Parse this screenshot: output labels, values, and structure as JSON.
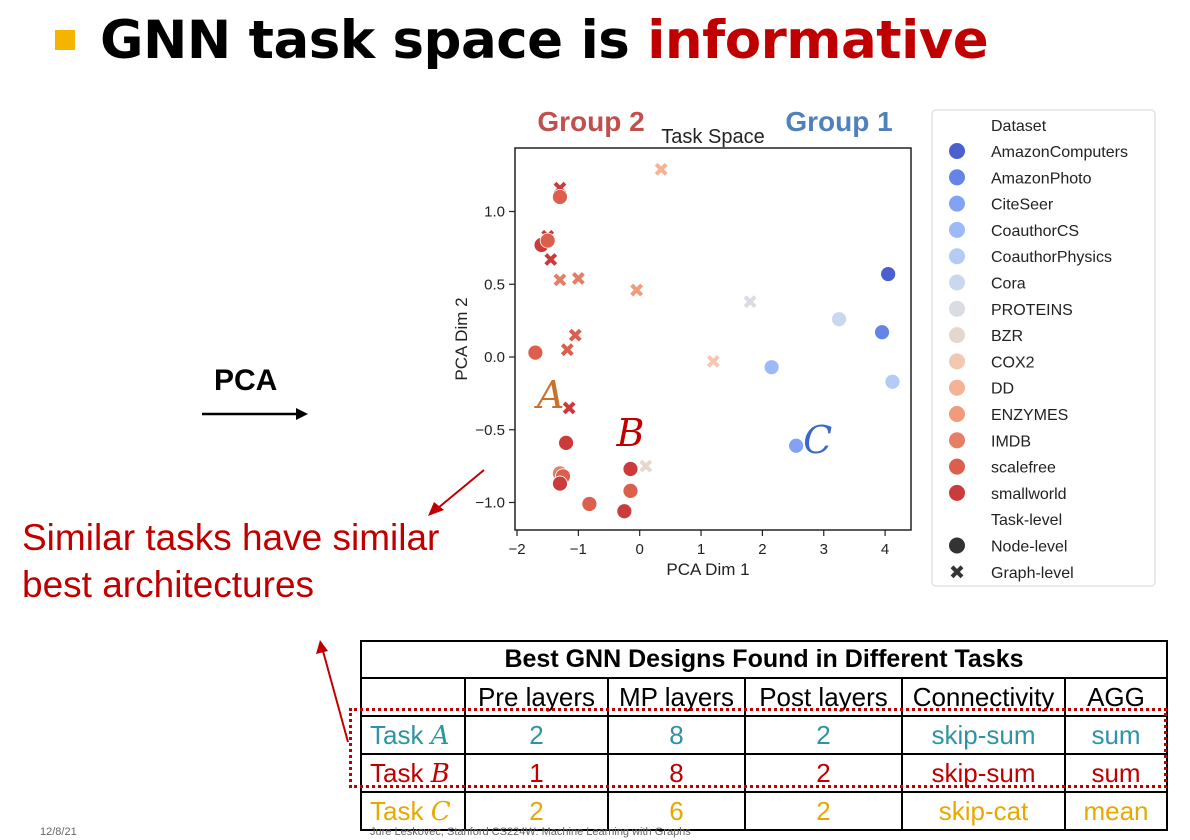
{
  "slide": {
    "title_prefix": "GNN task space is ",
    "title_highlight": "informative",
    "pca_label": "PCA",
    "similar_line1": "Similar tasks have similar",
    "similar_line2": "best architectures",
    "footer_left": "12/8/21",
    "footer_center": "Jure Leskovec, Stanford CS224W: Machine Learning with Graphs"
  },
  "chart_data": {
    "type": "scatter",
    "title": "Task Space",
    "xlabel": "PCA Dim 1",
    "ylabel": "PCA Dim 2",
    "xlim": [
      -2,
      4.45
    ],
    "ylim": [
      -1.2,
      1.45
    ],
    "xticks": [
      -2,
      -1,
      0,
      1,
      2,
      3,
      4
    ],
    "xtick_labels": [
      "−2",
      "−1",
      "0",
      "1",
      "2",
      "3",
      "4"
    ],
    "yticks": [
      -1.0,
      -0.5,
      0.0,
      0.5,
      1.0
    ],
    "ytick_labels": [
      "−1.0",
      "−0.5",
      "0.0",
      "0.5",
      "1.0"
    ],
    "grid": false,
    "legend_placement": "right",
    "group_labels": [
      {
        "text": "Group 2",
        "color": "#c0504d"
      },
      {
        "text": "Group 1",
        "color": "#4f81bd"
      }
    ],
    "annotations": [
      {
        "text": "A",
        "color": "#c8712a",
        "x": -1.45,
        "y": -0.35
      },
      {
        "text": "B",
        "color": "#c00000",
        "x": -0.15,
        "y": -0.61
      },
      {
        "text": "C",
        "color": "#3a6ac8",
        "x": 2.9,
        "y": -0.66
      }
    ],
    "legend": {
      "dataset_title": "Dataset",
      "datasets": [
        {
          "name": "AmazonComputers",
          "color": "#4b5fd0"
        },
        {
          "name": "AmazonPhoto",
          "color": "#6585e6"
        },
        {
          "name": "CiteSeer",
          "color": "#82a3f3"
        },
        {
          "name": "CoauthorCS",
          "color": "#9dbaf8"
        },
        {
          "name": "CoauthorPhysics",
          "color": "#b4cbf6"
        },
        {
          "name": "Cora",
          "color": "#c9d7ef"
        },
        {
          "name": "PROTEINS",
          "color": "#d9dce3"
        },
        {
          "name": "BZR",
          "color": "#e6d7ce"
        },
        {
          "name": "COX2",
          "color": "#f2c8b1"
        },
        {
          "name": "DD",
          "color": "#f5b395"
        },
        {
          "name": "ENZYMES",
          "color": "#f19a7c"
        },
        {
          "name": "IMDB",
          "color": "#e67e66"
        },
        {
          "name": "scalefree",
          "color": "#dc5e4d"
        },
        {
          "name": "smallworld",
          "color": "#cc3b3b"
        }
      ],
      "level_title": "Task-level",
      "levels": [
        {
          "name": "Node-level",
          "marker": "circle"
        },
        {
          "name": "Graph-level",
          "marker": "x"
        }
      ]
    },
    "points": [
      {
        "x": 4.05,
        "y": 0.57,
        "marker": "circle",
        "color": "#4b5fd0"
      },
      {
        "x": 3.95,
        "y": 0.17,
        "marker": "circle",
        "color": "#6585e6"
      },
      {
        "x": 2.55,
        "y": -0.61,
        "marker": "circle",
        "color": "#82a3f3"
      },
      {
        "x": 2.15,
        "y": -0.07,
        "marker": "circle",
        "color": "#9dbaf8"
      },
      {
        "x": 4.12,
        "y": -0.17,
        "marker": "circle",
        "color": "#b4cbf6"
      },
      {
        "x": 3.25,
        "y": 0.26,
        "marker": "circle",
        "color": "#c9d7ef"
      },
      {
        "x": 1.8,
        "y": 0.38,
        "marker": "x",
        "color": "#d9dce3"
      },
      {
        "x": 0.1,
        "y": -0.75,
        "marker": "x",
        "color": "#e6d7ce"
      },
      {
        "x": 1.2,
        "y": -0.03,
        "marker": "x",
        "color": "#f2c8b1"
      },
      {
        "x": 0.35,
        "y": 1.29,
        "marker": "x",
        "color": "#f5b395"
      },
      {
        "x": -0.05,
        "y": 0.46,
        "marker": "x",
        "color": "#f19a7c"
      },
      {
        "x": -1.3,
        "y": 0.53,
        "marker": "x",
        "color": "#e67e66"
      },
      {
        "x": -1.0,
        "y": 0.54,
        "marker": "x",
        "color": "#e67e66"
      },
      {
        "x": -1.3,
        "y": 1.16,
        "marker": "x",
        "color": "#cc3b3b"
      },
      {
        "x": -1.5,
        "y": 0.83,
        "marker": "x",
        "color": "#cc3b3b"
      },
      {
        "x": -1.45,
        "y": 0.67,
        "marker": "x",
        "color": "#cc3b3b"
      },
      {
        "x": -1.05,
        "y": 0.15,
        "marker": "x",
        "color": "#dc5e4d"
      },
      {
        "x": -1.18,
        "y": 0.05,
        "marker": "x",
        "color": "#dc5e4d"
      },
      {
        "x": -1.15,
        "y": -0.35,
        "marker": "x",
        "color": "#cc3b3b"
      },
      {
        "x": -1.3,
        "y": 1.1,
        "marker": "circle",
        "color": "#dc5e4d"
      },
      {
        "x": -1.6,
        "y": 0.77,
        "marker": "circle",
        "color": "#cc3b3b"
      },
      {
        "x": -1.5,
        "y": 0.8,
        "marker": "circle",
        "color": "#dc5e4d"
      },
      {
        "x": -1.7,
        "y": 0.03,
        "marker": "circle",
        "color": "#dc5e4d"
      },
      {
        "x": -1.2,
        "y": -0.59,
        "marker": "circle",
        "color": "#cc3b3b"
      },
      {
        "x": -1.3,
        "y": -0.8,
        "marker": "circle",
        "color": "#e67e66"
      },
      {
        "x": -1.25,
        "y": -0.82,
        "marker": "circle",
        "color": "#dc5e4d"
      },
      {
        "x": -1.3,
        "y": -0.87,
        "marker": "circle",
        "color": "#cc3b3b"
      },
      {
        "x": -0.82,
        "y": -1.01,
        "marker": "circle",
        "color": "#dc5e4d"
      },
      {
        "x": -0.25,
        "y": -1.06,
        "marker": "circle",
        "color": "#cc3b3b"
      },
      {
        "x": -0.15,
        "y": -0.77,
        "marker": "circle",
        "color": "#cc3b3b"
      },
      {
        "x": -0.15,
        "y": -0.92,
        "marker": "circle",
        "color": "#dc5e4d"
      }
    ]
  },
  "table": {
    "caption": "Best GNN Designs Found in Different Tasks",
    "headers": [
      "",
      "Pre layers",
      "MP layers",
      "Post layers",
      "Connectivity",
      "AGG"
    ],
    "rows": [
      {
        "task_word": "Task",
        "task_letter": "A",
        "pre": "2",
        "mp": "8",
        "post": "2",
        "conn": "skip-sum",
        "agg": "sum"
      },
      {
        "task_word": "Task",
        "task_letter": "B",
        "pre": "1",
        "mp": "8",
        "post": "2",
        "conn": "skip-sum",
        "agg": "sum"
      },
      {
        "task_word": "Task",
        "task_letter": "C",
        "pre": "2",
        "mp": "6",
        "post": "2",
        "conn": "skip-cat",
        "agg": "mean"
      }
    ]
  }
}
